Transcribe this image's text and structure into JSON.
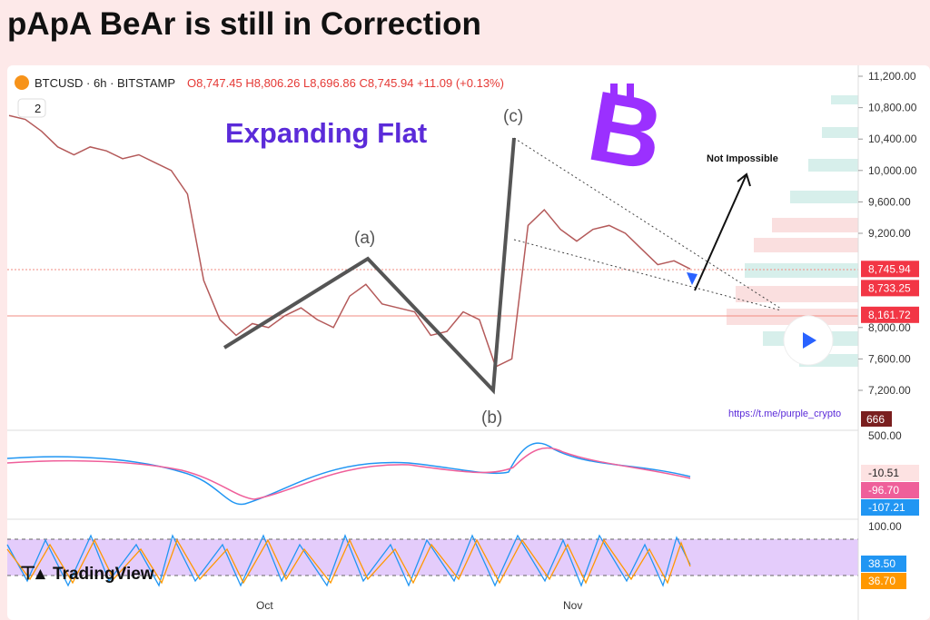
{
  "header": {
    "title": "pApA BeAr is still in Correction"
  },
  "legend": {
    "symbol": "BTCUSD · 6h · BITSTAMP",
    "open": "O8,747.45",
    "high": "H8,806.26",
    "low": "L8,696.86",
    "close": "C8,745.94",
    "change": "+11.09 (+0.13%)",
    "indicators": "2"
  },
  "annotations": {
    "pattern": "Expanding Flat",
    "a": "(a)",
    "b": "(b)",
    "c": "(c)",
    "target": "Not Impossible",
    "link": "https://t.me/purple_crypto"
  },
  "price_axis": [
    {
      "value": 11200,
      "label": "11,200.00"
    },
    {
      "value": 10800,
      "label": "10,800.00"
    },
    {
      "value": 10400,
      "label": "10,400.00"
    },
    {
      "value": 10000,
      "label": "10,000.00"
    },
    {
      "value": 9600,
      "label": "9,600.00"
    },
    {
      "value": 9200,
      "label": "9,200.00"
    },
    {
      "value": 8000,
      "label": "8,000.00"
    },
    {
      "value": 7600,
      "label": "7,600.00"
    },
    {
      "value": 7200,
      "label": "7,200.00"
    }
  ],
  "price_badges": [
    {
      "value": 8745.94,
      "label": "8,745.94"
    },
    {
      "value": 8733.25,
      "label": "8,733.25"
    },
    {
      "value": 8161.72,
      "label": "8,161.72"
    }
  ],
  "volume_badge": "666",
  "macd_axis": {
    "top": "500.00",
    "values": [
      "-10.51",
      "-96.70",
      "-107.21"
    ]
  },
  "stoch_axis": {
    "top": "100.00",
    "values": [
      "38.50",
      "36.70"
    ]
  },
  "time_axis": [
    "Oct",
    "Nov"
  ],
  "branding": "TradingView",
  "price": [
    10700,
    10650,
    10500,
    10300,
    10200,
    10300,
    10250,
    10150,
    10200,
    10100,
    10000,
    9700,
    8600,
    8100,
    7900,
    8050,
    8000,
    8150,
    8250,
    8100,
    8000,
    8400,
    8550,
    8300,
    8250,
    8200,
    7900,
    7950,
    8200,
    8100,
    7500,
    7600,
    9300,
    9500,
    9250,
    9100,
    9250,
    9300,
    9200,
    9000,
    8800,
    8850,
    8746
  ]
}
